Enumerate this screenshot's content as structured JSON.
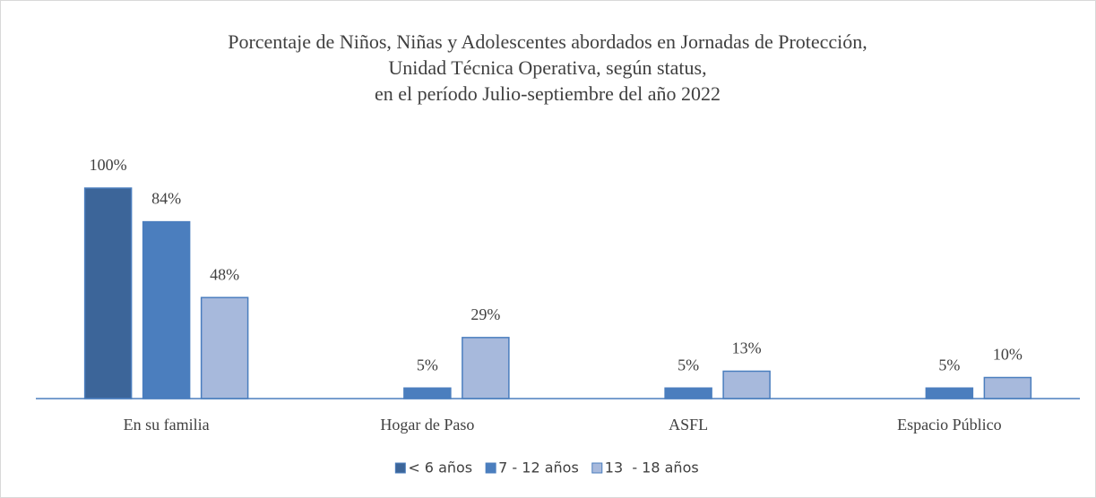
{
  "chart_data": {
    "type": "bar",
    "title": [
      "Porcentaje de Niños, Niñas y Adolescentes abordados en Jornadas de Protección,",
      "Unidad Técnica Operativa, según status,",
      "en el período Julio-septiembre del año 2022"
    ],
    "categories": [
      "En su familia",
      "Hogar de Paso",
      "ASFL",
      "Espacio Público"
    ],
    "series": [
      {
        "name": "< 6 años",
        "color": "#3c6599",
        "values": [
          100,
          null,
          null,
          null
        ],
        "value_labels": [
          "100%",
          null,
          null,
          null
        ]
      },
      {
        "name": "7 - 12 años",
        "color": "#4b7ebe",
        "values": [
          84,
          5,
          5,
          5
        ],
        "value_labels": [
          "84%",
          "5%",
          "5%",
          "5%"
        ]
      },
      {
        "name": "13  - 18 años",
        "color": "#a7b9dc",
        "values": [
          48,
          29,
          13,
          10
        ],
        "value_labels": [
          "48%",
          "29%",
          "13%",
          "10%"
        ]
      }
    ],
    "ylim": [
      0,
      100
    ],
    "grid": false,
    "legend": "bottom"
  }
}
